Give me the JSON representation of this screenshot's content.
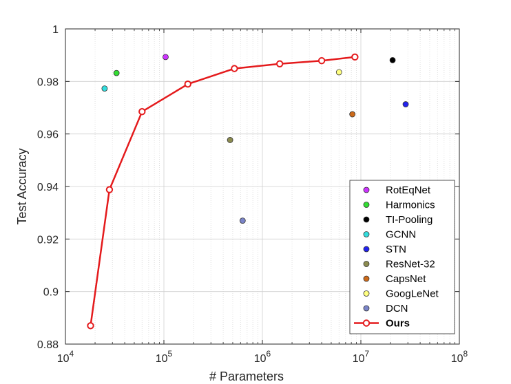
{
  "chart_data": {
    "type": "scatter",
    "xlabel": "# Parameters",
    "ylabel": "Test Accuracy",
    "xscale": "log",
    "xlim": [
      10000,
      100000000
    ],
    "ylim": [
      0.88,
      1
    ],
    "grid": true,
    "legend_position": "bottom-right",
    "x_tick_labels": [
      {
        "base": "10",
        "exp": "4"
      },
      {
        "base": "10",
        "exp": "5"
      },
      {
        "base": "10",
        "exp": "6"
      },
      {
        "base": "10",
        "exp": "7"
      },
      {
        "base": "10",
        "exp": "8"
      }
    ],
    "y_tick_labels": [
      "0.88",
      "0.9",
      "0.92",
      "0.94",
      "0.96",
      "0.98",
      "1"
    ],
    "series": [
      {
        "name": "RotEqNet",
        "color": "#cc33ff",
        "marker": "circle",
        "points": [
          [
            104000,
            0.9893
          ]
        ]
      },
      {
        "name": "Harmonics",
        "color": "#33dd33",
        "marker": "circle",
        "points": [
          [
            33000,
            0.9832
          ]
        ]
      },
      {
        "name": "TI-Pooling",
        "color": "#000000",
        "marker": "circle",
        "points": [
          [
            21000000,
            0.9881
          ]
        ]
      },
      {
        "name": "GCNN",
        "color": "#33dddd",
        "marker": "circle",
        "points": [
          [
            25000,
            0.9773
          ]
        ]
      },
      {
        "name": "STN",
        "color": "#2222ee",
        "marker": "circle",
        "points": [
          [
            28500000,
            0.9713
          ]
        ]
      },
      {
        "name": "ResNet-32",
        "color": "#8c8c50",
        "marker": "circle",
        "points": [
          [
            470000,
            0.9577
          ]
        ]
      },
      {
        "name": "CapsNet",
        "color": "#cc6a1a",
        "marker": "circle",
        "points": [
          [
            8200000,
            0.9675
          ]
        ]
      },
      {
        "name": "GoogLeNet",
        "color": "#ffff80",
        "marker": "circle",
        "points": [
          [
            6000000,
            0.9835
          ]
        ]
      },
      {
        "name": "DCN",
        "color": "#7a84c8",
        "marker": "circle",
        "points": [
          [
            630000,
            0.927
          ]
        ]
      },
      {
        "name": "Ours",
        "color": "#e41a1c",
        "marker": "circle-line",
        "points": [
          [
            18000,
            0.887
          ],
          [
            28000,
            0.9388
          ],
          [
            60000,
            0.9685
          ],
          [
            175000,
            0.979
          ],
          [
            520000,
            0.9849
          ],
          [
            1500000,
            0.9867
          ],
          [
            4000000,
            0.9879
          ],
          [
            8700000,
            0.9893
          ]
        ]
      }
    ]
  }
}
